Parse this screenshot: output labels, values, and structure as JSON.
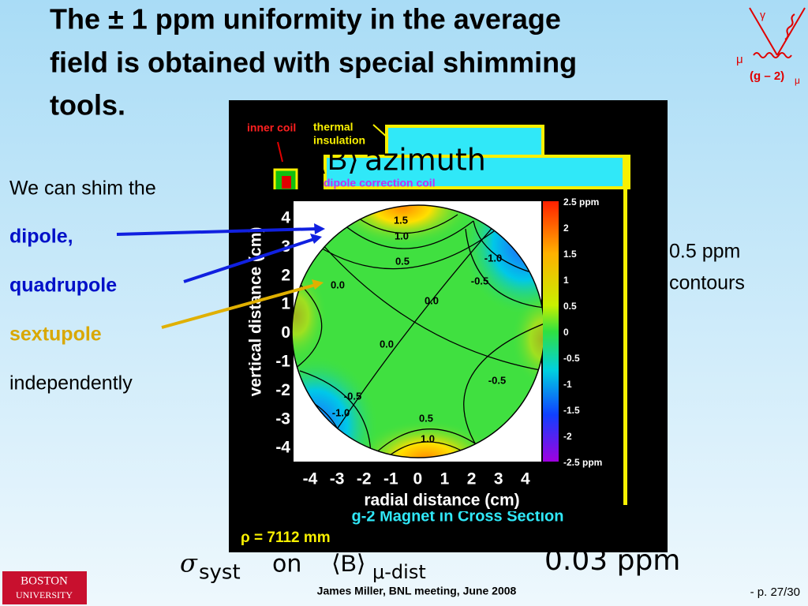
{
  "header": {
    "title_lines": [
      "The ± 1 ppm uniformity in the average",
      "field is obtained with special shimming",
      "tools."
    ]
  },
  "left_list": [
    "We can shim the",
    "dipole,",
    "quadrupole",
    "sextupole",
    "independently"
  ],
  "annotation": [
    "0.5 ppm",
    "contours"
  ],
  "figure": {
    "magnet_labels": {
      "inner_coil": "inner coil",
      "thermal": "thermal",
      "insulation": "insulation",
      "dipole_correction_coil": "dipole correction coil",
      "caption": "g-2 Magnet in Cross Section",
      "rho": "ρ = 7112 mm"
    },
    "plot": {
      "x_label": "radial distance (cm)",
      "y_label": "vertical distance (cm)",
      "x_ticks": [
        "-4",
        "-3",
        "-2",
        "-1",
        "0",
        "1",
        "2",
        "3",
        "4"
      ],
      "y_ticks": [
        "4",
        "3",
        "2",
        "1",
        "0",
        "-1",
        "-2",
        "-3",
        "-4"
      ],
      "contour_labels": [
        "1.5",
        "1.0",
        "0.5",
        "-1.0",
        "-0.5",
        "0.0",
        "0.0",
        "0.0",
        "-0.5",
        "-0.5",
        "-1.0",
        "0.5",
        "1.0"
      ],
      "colorbar_labels": [
        "2.5  ppm",
        "2",
        "1.5",
        "1",
        "0.5",
        "0",
        "-0.5",
        "-1",
        "-1.5",
        "-2",
        "-2.5  ppm"
      ]
    }
  },
  "overlay": {
    "field": "⟨B⟩",
    "field_sub": "azimuth",
    "sigma": "σ",
    "sigma_sub": "syst",
    "on": "on",
    "avg": "⟨B⟩",
    "avg_sub": "μ-dist",
    "value": "0.03 ppm"
  },
  "diagram": {
    "gamma": "γ",
    "mu": "μ",
    "label": "(g – 2)",
    "label_sub": "μ"
  },
  "footer": {
    "author": "James Miller,  BNL meeting, June 2008",
    "page": "- p. 27/30"
  },
  "logo": [
    "BOSTON",
    "UNIVERSITY"
  ]
}
